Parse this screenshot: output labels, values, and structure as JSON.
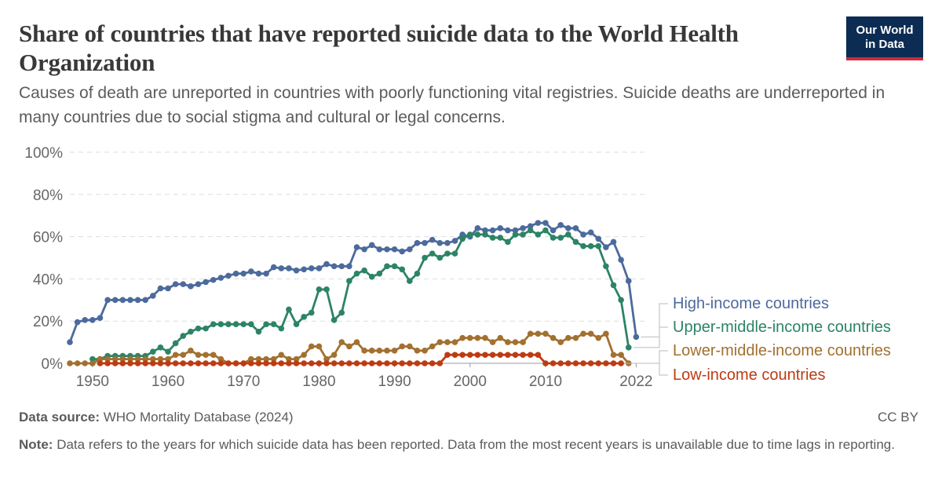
{
  "header": {
    "title": "Share of countries that have reported suicide data to the World Health Organization",
    "subtitle": "Causes of death are unreported in countries with poorly functioning vital registries. Suicide deaths are underreported in many countries due to social stigma and cultural or legal concerns.",
    "logo_line1": "Our World",
    "logo_line2": "in Data"
  },
  "footer": {
    "source_label": "Data source:",
    "source_text": "WHO Mortality Database (2024)",
    "license": "CC BY",
    "note_label": "Note:",
    "note_text": "Data refers to the years for which suicide data has been reported. Data from the most recent years is unavailable due to time lags in reporting."
  },
  "colors": {
    "high": "#4c6a9c",
    "upper_middle": "#2c8465",
    "lower_middle": "#a2702f",
    "low": "#be3b12",
    "grid": "#dddddd",
    "axis_text": "#666666"
  },
  "chart_data": {
    "type": "line",
    "x_ticks": [
      1950,
      1960,
      1970,
      1980,
      1990,
      2000,
      2010,
      2022
    ],
    "y_ticks": [
      0,
      20,
      40,
      60,
      80,
      100
    ],
    "y_tick_labels": [
      "0%",
      "20%",
      "40%",
      "60%",
      "80%",
      "100%"
    ],
    "xlim": [
      1947,
      2023
    ],
    "ylim": [
      0,
      100
    ],
    "grid": "horizontal dashed",
    "legend": "right, labels at line ends",
    "series": [
      {
        "name": "High-income countries",
        "color_key": "high",
        "points": [
          [
            1947,
            10
          ],
          [
            1948,
            19.5
          ],
          [
            1949,
            20.5
          ],
          [
            1950,
            20.5
          ],
          [
            1951,
            21.5
          ],
          [
            1952,
            30
          ],
          [
            1953,
            30
          ],
          [
            1954,
            30
          ],
          [
            1955,
            30
          ],
          [
            1956,
            30
          ],
          [
            1957,
            30
          ],
          [
            1958,
            32
          ],
          [
            1959,
            35.5
          ],
          [
            1960,
            35.5
          ],
          [
            1961,
            37.5
          ],
          [
            1962,
            37.5
          ],
          [
            1963,
            36.5
          ],
          [
            1964,
            37.5
          ],
          [
            1965,
            38.5
          ],
          [
            1966,
            39.5
          ],
          [
            1967,
            40.5
          ],
          [
            1968,
            41.5
          ],
          [
            1969,
            42.5
          ],
          [
            1970,
            42.5
          ],
          [
            1971,
            43.5
          ],
          [
            1972,
            42.5
          ],
          [
            1973,
            42.5
          ],
          [
            1974,
            45.5
          ],
          [
            1975,
            45
          ],
          [
            1976,
            45
          ],
          [
            1977,
            44
          ],
          [
            1978,
            44.5
          ],
          [
            1979,
            45
          ],
          [
            1980,
            45
          ],
          [
            1981,
            47
          ],
          [
            1982,
            46
          ],
          [
            1983,
            46
          ],
          [
            1984,
            46
          ],
          [
            1985,
            55
          ],
          [
            1986,
            54
          ],
          [
            1987,
            56
          ],
          [
            1988,
            54
          ],
          [
            1989,
            54
          ],
          [
            1990,
            54
          ],
          [
            1991,
            53
          ],
          [
            1992,
            54
          ],
          [
            1993,
            57
          ],
          [
            1994,
            57
          ],
          [
            1995,
            58.5
          ],
          [
            1996,
            57
          ],
          [
            1997,
            57
          ],
          [
            1998,
            58
          ],
          [
            1999,
            61
          ],
          [
            2000,
            60
          ],
          [
            2001,
            64
          ],
          [
            2002,
            63
          ],
          [
            2003,
            63
          ],
          [
            2004,
            64
          ],
          [
            2005,
            63
          ],
          [
            2006,
            63
          ],
          [
            2007,
            64
          ],
          [
            2008,
            65
          ],
          [
            2009,
            66.5
          ],
          [
            2010,
            66.5
          ],
          [
            2011,
            63
          ],
          [
            2012,
            65.5
          ],
          [
            2013,
            64
          ],
          [
            2014,
            64
          ],
          [
            2015,
            61
          ],
          [
            2016,
            62
          ],
          [
            2017,
            59
          ],
          [
            2018,
            55
          ],
          [
            2019,
            57.5
          ],
          [
            2020,
            49
          ],
          [
            2021,
            39
          ],
          [
            2022,
            12.5
          ]
        ]
      },
      {
        "name": "Upper-middle-income countries",
        "color_key": "upper_middle",
        "points": [
          [
            1950,
            2
          ],
          [
            1951,
            2
          ],
          [
            1952,
            3.5
          ],
          [
            1953,
            3.5
          ],
          [
            1954,
            3.5
          ],
          [
            1955,
            3.5
          ],
          [
            1956,
            3.5
          ],
          [
            1957,
            3.5
          ],
          [
            1958,
            5.5
          ],
          [
            1959,
            7.5
          ],
          [
            1960,
            5.5
          ],
          [
            1961,
            9.5
          ],
          [
            1962,
            13
          ],
          [
            1963,
            15
          ],
          [
            1964,
            16.5
          ],
          [
            1965,
            16.5
          ],
          [
            1966,
            18.5
          ],
          [
            1967,
            18.5
          ],
          [
            1968,
            18.5
          ],
          [
            1969,
            18.5
          ],
          [
            1970,
            18.5
          ],
          [
            1971,
            18.5
          ],
          [
            1972,
            15
          ],
          [
            1973,
            18.5
          ],
          [
            1974,
            18.5
          ],
          [
            1975,
            16.5
          ],
          [
            1976,
            25.5
          ],
          [
            1977,
            18.5
          ],
          [
            1978,
            22
          ],
          [
            1979,
            24
          ],
          [
            1980,
            35
          ],
          [
            1981,
            35
          ],
          [
            1982,
            20.5
          ],
          [
            1983,
            24
          ],
          [
            1984,
            39
          ],
          [
            1985,
            42.5
          ],
          [
            1986,
            44
          ],
          [
            1987,
            41
          ],
          [
            1988,
            42.5
          ],
          [
            1989,
            46
          ],
          [
            1990,
            46
          ],
          [
            1991,
            44.5
          ],
          [
            1992,
            39
          ],
          [
            1993,
            42.5
          ],
          [
            1994,
            50
          ],
          [
            1995,
            52
          ],
          [
            1996,
            50
          ],
          [
            1997,
            52
          ],
          [
            1998,
            52
          ],
          [
            1999,
            59
          ],
          [
            2000,
            61
          ],
          [
            2001,
            61
          ],
          [
            2002,
            61
          ],
          [
            2003,
            59.5
          ],
          [
            2004,
            59.5
          ],
          [
            2005,
            57.5
          ],
          [
            2006,
            61
          ],
          [
            2007,
            61
          ],
          [
            2008,
            63
          ],
          [
            2009,
            61
          ],
          [
            2010,
            63
          ],
          [
            2011,
            59.5
          ],
          [
            2012,
            59.5
          ],
          [
            2013,
            61
          ],
          [
            2014,
            57.5
          ],
          [
            2015,
            55.5
          ],
          [
            2016,
            55.5
          ],
          [
            2017,
            55.5
          ],
          [
            2018,
            46
          ],
          [
            2019,
            37
          ],
          [
            2020,
            30
          ],
          [
            2021,
            7.5
          ]
        ]
      },
      {
        "name": "Lower-middle-income countries",
        "color_key": "lower_middle",
        "points": [
          [
            1947,
            0
          ],
          [
            1948,
            0
          ],
          [
            1949,
            0
          ],
          [
            1950,
            0
          ],
          [
            1951,
            2
          ],
          [
            1952,
            2
          ],
          [
            1953,
            2
          ],
          [
            1954,
            2
          ],
          [
            1955,
            2
          ],
          [
            1956,
            2
          ],
          [
            1957,
            2
          ],
          [
            1958,
            2
          ],
          [
            1959,
            2
          ],
          [
            1960,
            2
          ],
          [
            1961,
            4
          ],
          [
            1962,
            4
          ],
          [
            1963,
            6
          ],
          [
            1964,
            4
          ],
          [
            1965,
            4
          ],
          [
            1966,
            4
          ],
          [
            1967,
            2
          ],
          [
            1968,
            0
          ],
          [
            1969,
            0
          ],
          [
            1970,
            0
          ],
          [
            1971,
            2
          ],
          [
            1972,
            2
          ],
          [
            1973,
            2
          ],
          [
            1974,
            2
          ],
          [
            1975,
            4
          ],
          [
            1976,
            2
          ],
          [
            1977,
            2
          ],
          [
            1978,
            4
          ],
          [
            1979,
            8
          ],
          [
            1980,
            8
          ],
          [
            1981,
            2
          ],
          [
            1982,
            4
          ],
          [
            1983,
            10
          ],
          [
            1984,
            8
          ],
          [
            1985,
            10
          ],
          [
            1986,
            6
          ],
          [
            1987,
            6
          ],
          [
            1988,
            6
          ],
          [
            1989,
            6
          ],
          [
            1990,
            6
          ],
          [
            1991,
            8
          ],
          [
            1992,
            8
          ],
          [
            1993,
            6
          ],
          [
            1994,
            6
          ],
          [
            1995,
            8
          ],
          [
            1996,
            10
          ],
          [
            1997,
            10
          ],
          [
            1998,
            10
          ],
          [
            1999,
            12
          ],
          [
            2000,
            12
          ],
          [
            2001,
            12
          ],
          [
            2002,
            12
          ],
          [
            2003,
            10
          ],
          [
            2004,
            12
          ],
          [
            2005,
            10
          ],
          [
            2006,
            10
          ],
          [
            2007,
            10
          ],
          [
            2008,
            14
          ],
          [
            2009,
            14
          ],
          [
            2010,
            14
          ],
          [
            2011,
            12
          ],
          [
            2012,
            10
          ],
          [
            2013,
            12
          ],
          [
            2014,
            12
          ],
          [
            2015,
            14
          ],
          [
            2016,
            14
          ],
          [
            2017,
            12
          ],
          [
            2018,
            14
          ],
          [
            2019,
            4
          ],
          [
            2020,
            4
          ],
          [
            2021,
            0
          ]
        ]
      },
      {
        "name": "Low-income countries",
        "color_key": "low",
        "points": [
          [
            1951,
            0
          ],
          [
            1952,
            0
          ],
          [
            1953,
            0
          ],
          [
            1954,
            0
          ],
          [
            1955,
            0
          ],
          [
            1956,
            0
          ],
          [
            1957,
            0
          ],
          [
            1958,
            0
          ],
          [
            1959,
            0
          ],
          [
            1960,
            0
          ],
          [
            1961,
            0
          ],
          [
            1962,
            0
          ],
          [
            1963,
            0
          ],
          [
            1964,
            0
          ],
          [
            1965,
            0
          ],
          [
            1966,
            0
          ],
          [
            1967,
            0
          ],
          [
            1968,
            0
          ],
          [
            1969,
            0
          ],
          [
            1970,
            0
          ],
          [
            1971,
            0
          ],
          [
            1972,
            0
          ],
          [
            1973,
            0
          ],
          [
            1974,
            0
          ],
          [
            1975,
            0
          ],
          [
            1976,
            0
          ],
          [
            1977,
            0
          ],
          [
            1978,
            0
          ],
          [
            1979,
            0
          ],
          [
            1980,
            0
          ],
          [
            1981,
            0
          ],
          [
            1982,
            0
          ],
          [
            1983,
            0
          ],
          [
            1984,
            0
          ],
          [
            1985,
            0
          ],
          [
            1986,
            0
          ],
          [
            1987,
            0
          ],
          [
            1988,
            0
          ],
          [
            1989,
            0
          ],
          [
            1990,
            0
          ],
          [
            1991,
            0
          ],
          [
            1992,
            0
          ],
          [
            1993,
            0
          ],
          [
            1994,
            0
          ],
          [
            1995,
            0
          ],
          [
            1996,
            0
          ],
          [
            1997,
            4
          ],
          [
            1998,
            4
          ],
          [
            1999,
            4
          ],
          [
            2000,
            4
          ],
          [
            2001,
            4
          ],
          [
            2002,
            4
          ],
          [
            2003,
            4
          ],
          [
            2004,
            4
          ],
          [
            2005,
            4
          ],
          [
            2006,
            4
          ],
          [
            2007,
            4
          ],
          [
            2008,
            4
          ],
          [
            2009,
            4
          ],
          [
            2010,
            0
          ],
          [
            2011,
            0
          ],
          [
            2012,
            0
          ],
          [
            2013,
            0
          ],
          [
            2014,
            0
          ],
          [
            2015,
            0
          ],
          [
            2016,
            0
          ],
          [
            2017,
            0
          ],
          [
            2018,
            0
          ],
          [
            2019,
            0
          ],
          [
            2020,
            0
          ]
        ]
      }
    ]
  }
}
